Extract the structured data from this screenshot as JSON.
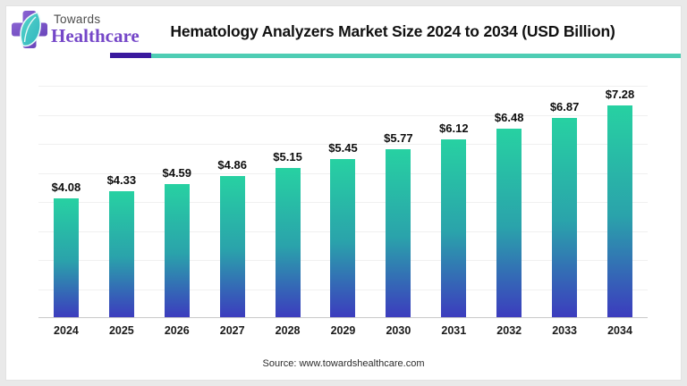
{
  "logo": {
    "brand_top": "Towards",
    "brand_bottom": "Healthcare",
    "icon": "medical-cross-with-leaf"
  },
  "header": {
    "title": "Hematology Analyzers Market Size 2024 to 2034 (USD Billion)"
  },
  "chart_data": {
    "type": "bar",
    "title": "Hematology Analyzers Market Size 2024 to 2034 (USD Billion)",
    "categories": [
      "2024",
      "2025",
      "2026",
      "2027",
      "2028",
      "2029",
      "2030",
      "2031",
      "2032",
      "2033",
      "2034"
    ],
    "values": [
      4.08,
      4.33,
      4.59,
      4.86,
      5.15,
      5.45,
      5.77,
      6.12,
      6.48,
      6.87,
      7.28
    ],
    "value_labels": [
      "$4.08",
      "$4.33",
      "$4.59",
      "$4.86",
      "$5.15",
      "$5.45",
      "$5.77",
      "$6.12",
      "$6.48",
      "$6.87",
      "$7.28"
    ],
    "unit": "USD Billion",
    "xlabel": "",
    "ylabel": "",
    "ylim": [
      0,
      8
    ],
    "grid": "horizontal",
    "grid_interval": 1,
    "legend": "none",
    "bar_color_top": "#27d1a2",
    "bar_color_bottom": "#3c3cbe"
  },
  "footer": {
    "source": "Source: www.towardshealthcare.com"
  },
  "colors": {
    "accent_purple": "#3a1a9e",
    "accent_teal": "#4ecdb4",
    "logo_purple": "#7547c8"
  }
}
